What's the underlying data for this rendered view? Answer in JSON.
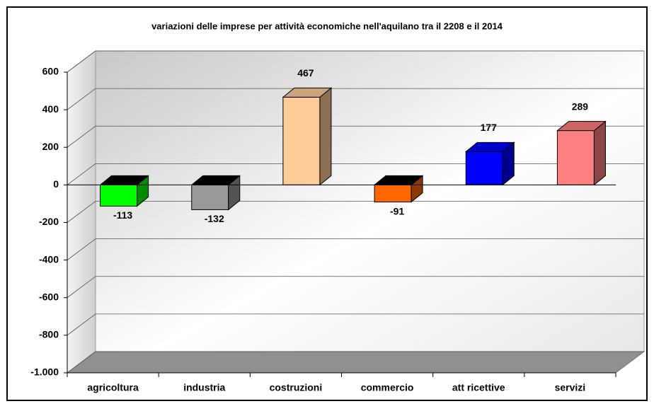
{
  "chart_data": {
    "type": "bar3d",
    "title": "variazioni delle imprese per attività economiche nell'aquilano tra il 2208 e il 2014",
    "categories": [
      "agricoltura",
      "industria",
      "costruzioni",
      "commercio",
      "att ricettive",
      "servizi"
    ],
    "values": [
      -113,
      -132,
      467,
      -91,
      177,
      289
    ],
    "colors": [
      "#00ff00",
      "#999999",
      "#ffcc99",
      "#ff6600",
      "#0000ff",
      "#ff8080"
    ],
    "ylim": [
      -1000,
      600
    ],
    "yticks": [
      {
        "value": -1000,
        "label": "-1.000"
      },
      -800,
      -600,
      -400,
      -200,
      0,
      200,
      400,
      600
    ],
    "grid": true
  }
}
